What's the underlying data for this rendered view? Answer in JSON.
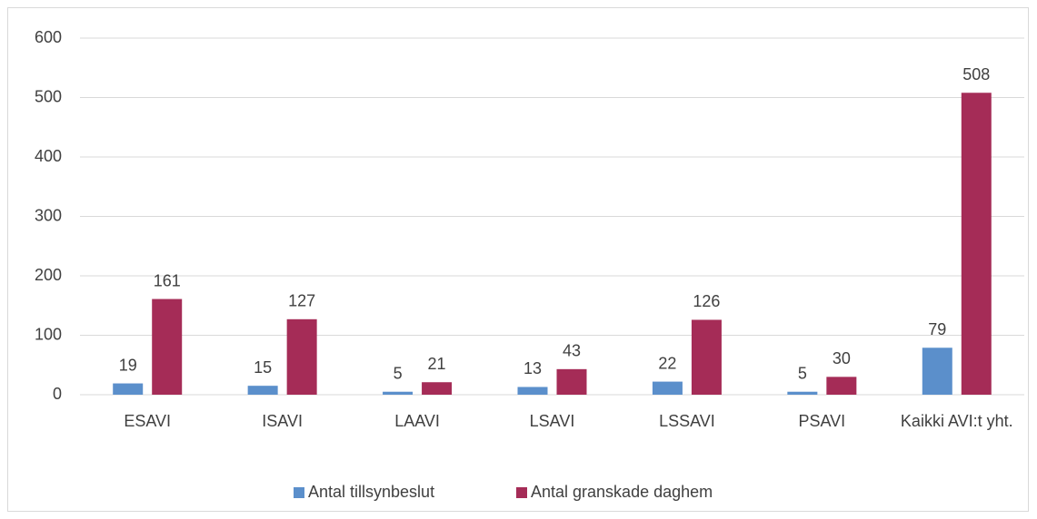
{
  "chart_data": {
    "type": "bar",
    "categories": [
      "ESAVI",
      "ISAVI",
      "LAAVI",
      "LSAVI",
      "LSSAVI",
      "PSAVI",
      "Kaikki AVI:t yht."
    ],
    "series": [
      {
        "name": "Antal tillsynbeslut",
        "color": "#5b8fcb",
        "values": [
          19,
          15,
          5,
          13,
          22,
          5,
          79
        ]
      },
      {
        "name": "Antal granskade daghem",
        "color": "#a52c57",
        "values": [
          161,
          127,
          21,
          43,
          126,
          30,
          508
        ]
      }
    ],
    "ylim": [
      0,
      600
    ],
    "yticks": [
      0,
      100,
      200,
      300,
      400,
      500,
      600
    ],
    "grid": true,
    "legend": "bottom"
  }
}
